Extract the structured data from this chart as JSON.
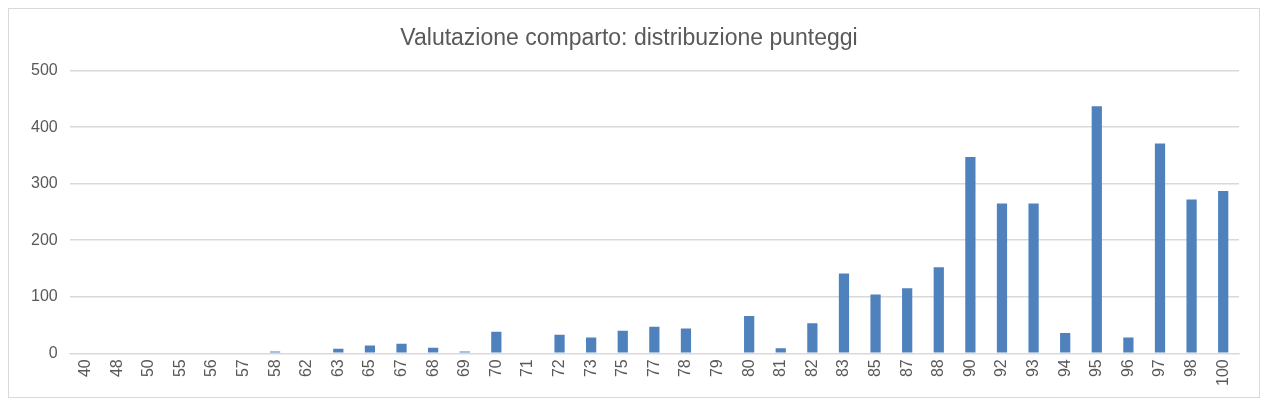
{
  "chart_data": {
    "type": "bar",
    "title": "Valutazione comparto: distribuzione punteggi",
    "categories": [
      "40",
      "48",
      "50",
      "55",
      "56",
      "57",
      "58",
      "62",
      "63",
      "65",
      "67",
      "68",
      "69",
      "70",
      "71",
      "72",
      "73",
      "75",
      "77",
      "78",
      "79",
      "80",
      "81",
      "82",
      "83",
      "85",
      "87",
      "88",
      "90",
      "92",
      "93",
      "94",
      "95",
      "96",
      "97",
      "98",
      "100"
    ],
    "values": [
      0,
      0,
      0,
      0,
      0,
      0,
      3,
      0,
      8,
      14,
      17,
      10,
      3,
      38,
      0,
      33,
      28,
      40,
      47,
      44,
      0,
      66,
      9,
      53,
      141,
      104,
      115,
      152,
      347,
      265,
      265,
      36,
      437,
      28,
      371,
      272,
      287
    ],
    "color": "#4f81bd",
    "ylim": [
      0,
      500
    ],
    "yticks": [
      0,
      100,
      200,
      300,
      400,
      500
    ],
    "grid": "y",
    "legend": false
  }
}
